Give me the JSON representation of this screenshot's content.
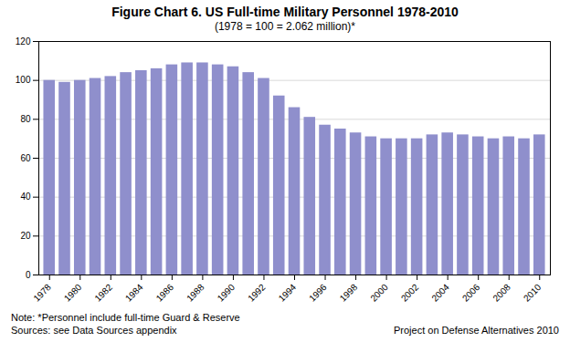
{
  "chart_data": {
    "type": "bar",
    "title": "Figure Chart 6. US Full-time Military Personnel 1978-2010",
    "subtitle": "(1978 = 100 = 2.062 million)*",
    "x": [
      1978,
      1979,
      1980,
      1981,
      1982,
      1983,
      1984,
      1985,
      1986,
      1987,
      1988,
      1989,
      1990,
      1991,
      1992,
      1993,
      1994,
      1995,
      1996,
      1997,
      1998,
      1999,
      2000,
      2001,
      2002,
      2003,
      2004,
      2005,
      2006,
      2007,
      2008,
      2009,
      2010
    ],
    "values": [
      100,
      99,
      100,
      101,
      102,
      104,
      105,
      106,
      108,
      109,
      109,
      108,
      107,
      104,
      101,
      92,
      86,
      81,
      77,
      75,
      73,
      71,
      70,
      70,
      70,
      72,
      73,
      72,
      71,
      70,
      71,
      70,
      72
    ],
    "color": "#8f8fcc",
    "xlim": [
      1977.3,
      2010.7
    ],
    "xticks": [
      1978,
      1980,
      1982,
      1984,
      1986,
      1988,
      1990,
      1992,
      1994,
      1996,
      1998,
      2000,
      2002,
      2004,
      2006,
      2008,
      2010
    ],
    "ylim": [
      0,
      120
    ],
    "yticks": [
      0,
      20,
      40,
      60,
      80,
      100,
      120
    ],
    "grid": true,
    "annotations": [
      "Note: *Personnel include full-time Guard & Reserve",
      "Sources: see Data Sources appendix",
      "Project on Defense Alternatives 2010"
    ]
  }
}
